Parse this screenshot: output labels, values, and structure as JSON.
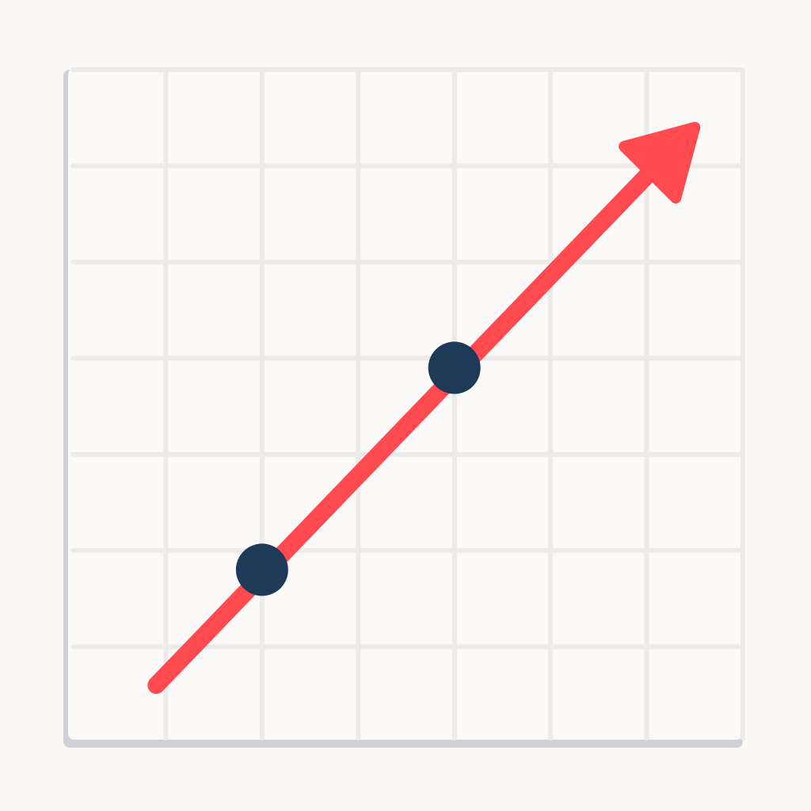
{
  "chart_data": {
    "type": "line",
    "title": "",
    "xlabel": "",
    "ylabel": "",
    "grid": true,
    "xlim": [
      0,
      7
    ],
    "ylim": [
      0,
      7
    ],
    "series": [
      {
        "points": [
          {
            "x": 0.9,
            "y": 0.6
          },
          {
            "x": 2.0,
            "y": 1.8
          },
          {
            "x": 4.0,
            "y": 3.9
          },
          {
            "x": 6.5,
            "y": 6.4
          }
        ],
        "markers": [
          {
            "x": 2.0,
            "y": 1.8
          },
          {
            "x": 4.0,
            "y": 3.9
          }
        ],
        "arrow_end": true
      }
    ],
    "colors": {
      "background": "#fbfaf8",
      "panel_shadow": "#cfd0d6",
      "grid": "#ecebe9",
      "line": "#ff4a4f",
      "marker": "#1e3a58"
    }
  }
}
